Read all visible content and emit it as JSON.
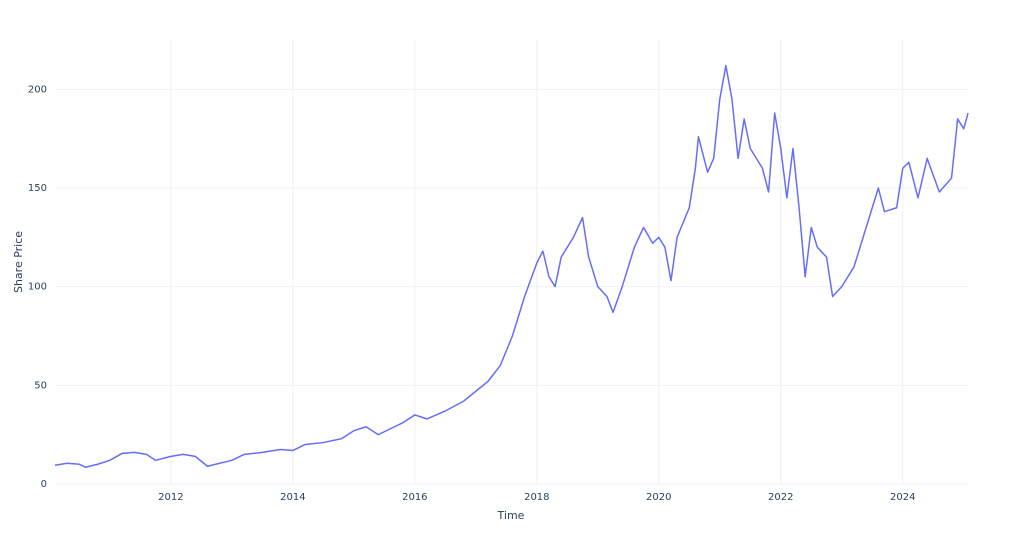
{
  "chart_data": {
    "type": "line",
    "x_label": "Time",
    "y_label": "Share Price",
    "x": [
      2010.1,
      2010.3,
      2010.5,
      2010.6,
      2010.8,
      2011.0,
      2011.2,
      2011.4,
      2011.6,
      2011.75,
      2012.0,
      2012.2,
      2012.4,
      2012.6,
      2012.8,
      2013.0,
      2013.2,
      2013.5,
      2013.8,
      2014.0,
      2014.2,
      2014.5,
      2014.8,
      2015.0,
      2015.2,
      2015.4,
      2015.6,
      2015.8,
      2016.0,
      2016.2,
      2016.5,
      2016.8,
      2017.0,
      2017.2,
      2017.4,
      2017.6,
      2017.8,
      2018.0,
      2018.1,
      2018.2,
      2018.3,
      2018.4,
      2018.6,
      2018.75,
      2018.85,
      2019.0,
      2019.15,
      2019.25,
      2019.4,
      2019.6,
      2019.75,
      2019.9,
      2020.0,
      2020.1,
      2020.2,
      2020.3,
      2020.5,
      2020.6,
      2020.65,
      2020.8,
      2020.9,
      2021.0,
      2021.1,
      2021.2,
      2021.3,
      2021.4,
      2021.5,
      2021.7,
      2021.8,
      2021.9,
      2022.0,
      2022.1,
      2022.2,
      2022.3,
      2022.4,
      2022.5,
      2022.6,
      2022.75,
      2022.85,
      2023.0,
      2023.2,
      2023.4,
      2023.6,
      2023.7,
      2023.9,
      2024.0,
      2024.1,
      2024.25,
      2024.4,
      2024.6,
      2024.8,
      2024.9,
      2025.0,
      2025.07
    ],
    "series": [
      {
        "name": "Share Price",
        "color": "#636efa",
        "values": [
          9.5,
          10.5,
          10,
          8.5,
          10,
          12,
          15.5,
          16,
          15,
          12,
          14,
          15,
          14,
          9,
          10.5,
          12,
          15,
          16,
          17.5,
          17,
          20,
          21,
          23,
          27,
          29,
          25,
          28,
          31,
          35,
          33,
          37,
          42,
          47,
          52,
          60,
          75,
          95,
          112,
          118,
          105,
          100,
          115,
          125,
          135,
          115,
          100,
          95,
          87,
          100,
          120,
          130,
          122,
          125,
          120,
          103,
          125,
          140,
          160,
          176,
          158,
          165,
          195,
          212,
          195,
          165,
          185,
          170,
          160,
          148,
          188,
          170,
          145,
          170,
          140,
          105,
          130,
          120,
          115,
          95,
          100,
          110,
          130,
          150,
          138,
          140,
          160,
          163,
          145,
          165,
          148,
          155,
          185,
          180,
          188
        ]
      }
    ],
    "xlim": [
      2010.1,
      2025.07
    ],
    "xticks": [
      2012,
      2014,
      2016,
      2018,
      2020,
      2022,
      2024
    ],
    "ylim": [
      0,
      225
    ],
    "yticks": [
      0,
      50,
      100,
      150,
      200
    ],
    "grid": true
  }
}
